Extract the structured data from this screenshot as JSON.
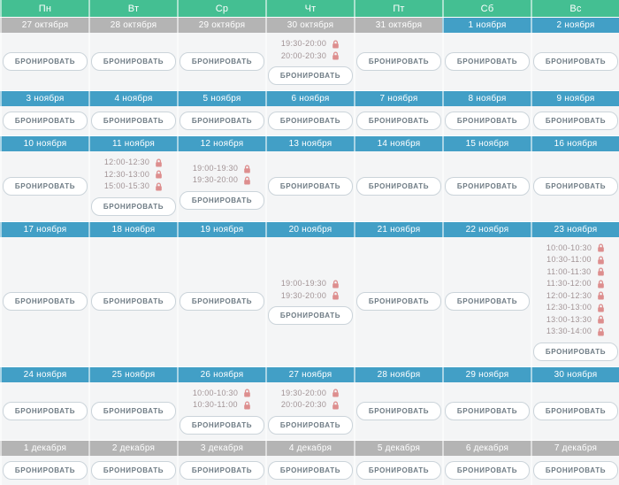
{
  "book_button_label": "БРОНИРОВАТЬ",
  "weekday_header": [
    "Пн",
    "Вт",
    "Ср",
    "Чт",
    "Пт",
    "Сб",
    "Вс"
  ],
  "colors": {
    "weekday_header_bg": "#44bf92",
    "november_date_bg": "#429fc6",
    "other_month_date_bg": "#b4b4b4",
    "cell_bg": "#f4f5f6",
    "slot_text": "#a29496",
    "lock_icon": "#dd8e8e",
    "button_text": "#6e7b84",
    "button_border": "#cbd4da"
  },
  "weeks": [
    {
      "days": [
        {
          "date": "27 октября",
          "tone": "gray",
          "slots": []
        },
        {
          "date": "28 октября",
          "tone": "gray",
          "slots": []
        },
        {
          "date": "29 октября",
          "tone": "gray",
          "slots": []
        },
        {
          "date": "30 октября",
          "tone": "gray",
          "slots": [
            "19:30-20:00",
            "20:00-20:30"
          ]
        },
        {
          "date": "31 октября",
          "tone": "gray",
          "slots": []
        },
        {
          "date": "1 ноября",
          "tone": "blue",
          "slots": []
        },
        {
          "date": "2 ноября",
          "tone": "blue",
          "slots": []
        }
      ]
    },
    {
      "days": [
        {
          "date": "3 ноября",
          "tone": "blue",
          "slots": []
        },
        {
          "date": "4 ноября",
          "tone": "blue",
          "slots": []
        },
        {
          "date": "5 ноября",
          "tone": "blue",
          "slots": []
        },
        {
          "date": "6 ноября",
          "tone": "blue",
          "slots": []
        },
        {
          "date": "7 ноября",
          "tone": "blue",
          "slots": []
        },
        {
          "date": "8 ноября",
          "tone": "blue",
          "slots": []
        },
        {
          "date": "9 ноября",
          "tone": "blue",
          "slots": []
        }
      ]
    },
    {
      "days": [
        {
          "date": "10 ноября",
          "tone": "blue",
          "slots": []
        },
        {
          "date": "11 ноября",
          "tone": "blue",
          "slots": [
            "12:00-12:30",
            "12:30-13:00",
            "15:00-15:30"
          ]
        },
        {
          "date": "12 ноября",
          "tone": "blue",
          "slots": [
            "19:00-19:30",
            "19:30-20:00"
          ]
        },
        {
          "date": "13 ноября",
          "tone": "blue",
          "slots": []
        },
        {
          "date": "14 ноября",
          "tone": "blue",
          "slots": []
        },
        {
          "date": "15 ноября",
          "tone": "blue",
          "slots": []
        },
        {
          "date": "16 ноября",
          "tone": "blue",
          "slots": []
        }
      ]
    },
    {
      "days": [
        {
          "date": "17 ноября",
          "tone": "blue",
          "slots": []
        },
        {
          "date": "18 ноября",
          "tone": "blue",
          "slots": []
        },
        {
          "date": "19 ноября",
          "tone": "blue",
          "slots": []
        },
        {
          "date": "20 ноября",
          "tone": "blue",
          "slots": [
            "19:00-19:30",
            "19:30-20:00"
          ]
        },
        {
          "date": "21 ноября",
          "tone": "blue",
          "slots": []
        },
        {
          "date": "22 ноября",
          "tone": "blue",
          "slots": []
        },
        {
          "date": "23 ноября",
          "tone": "blue",
          "slots": [
            "10:00-10:30",
            "10:30-11:00",
            "11:00-11:30",
            "11:30-12:00",
            "12:00-12:30",
            "12:30-13:00",
            "13:00-13:30",
            "13:30-14:00"
          ]
        }
      ]
    },
    {
      "days": [
        {
          "date": "24 ноября",
          "tone": "blue",
          "slots": []
        },
        {
          "date": "25 ноября",
          "tone": "blue",
          "slots": []
        },
        {
          "date": "26 ноября",
          "tone": "blue",
          "slots": [
            "10:00-10:30",
            "10:30-11:00"
          ]
        },
        {
          "date": "27 ноября",
          "tone": "blue",
          "slots": [
            "19:30-20:00",
            "20:00-20:30"
          ]
        },
        {
          "date": "28 ноября",
          "tone": "blue",
          "slots": []
        },
        {
          "date": "29 ноября",
          "tone": "blue",
          "slots": []
        },
        {
          "date": "30 ноября",
          "tone": "blue",
          "slots": []
        }
      ]
    },
    {
      "days": [
        {
          "date": "1 декабря",
          "tone": "gray",
          "slots": []
        },
        {
          "date": "2 декабря",
          "tone": "gray",
          "slots": []
        },
        {
          "date": "3 декабря",
          "tone": "gray",
          "slots": []
        },
        {
          "date": "4 декабря",
          "tone": "gray",
          "slots": []
        },
        {
          "date": "5 декабря",
          "tone": "gray",
          "slots": []
        },
        {
          "date": "6 декабря",
          "tone": "gray",
          "slots": []
        },
        {
          "date": "7 декабря",
          "tone": "gray",
          "slots": []
        }
      ]
    }
  ]
}
